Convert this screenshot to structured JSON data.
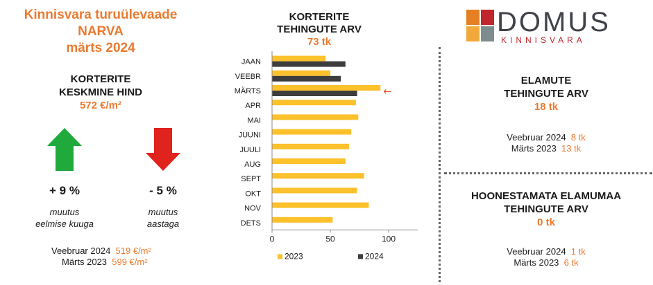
{
  "left": {
    "title_line1": "Kinnisvara turuülevaade",
    "title_line2": "NARVA",
    "title_line3": "märts 2024",
    "subtitle_line1": "KORTERITE",
    "subtitle_line2": "KESKMINE HIND",
    "price": "572 €/m²",
    "change_month": "+ 9 %",
    "change_month_note1": "muutus",
    "change_month_note2": "eelmise kuuga",
    "change_year": "- 5 %",
    "change_year_note1": "muutus",
    "change_year_note2": "aastaga",
    "cmp1_label": "Veebruar 2024",
    "cmp1_value": "519 €/m²",
    "cmp2_label": "Märts 2023",
    "cmp2_value": "599 €/m²",
    "up_color": "#1faa3b",
    "down_color": "#e0231d"
  },
  "chart_title": {
    "line1": "KORTERITE",
    "line2": "TEHINGUTE ARV",
    "value": "73 tk"
  },
  "chart_data": {
    "type": "bar",
    "orientation": "horizontal",
    "categories": [
      "JAAN",
      "VEEBR",
      "MÄRTS",
      "APR",
      "MAI",
      "JUUNI",
      "JUULI",
      "AUG",
      "SEPT",
      "OKT",
      "NOV",
      "DETS"
    ],
    "series": [
      {
        "name": "2023",
        "color": "#fcc12b",
        "values": [
          46,
          50,
          93,
          72,
          74,
          68,
          66,
          63,
          79,
          73,
          83,
          52
        ]
      },
      {
        "name": "2024",
        "color": "#3d3d3d",
        "values": [
          63,
          59,
          73,
          null,
          null,
          null,
          null,
          null,
          null,
          null,
          null,
          null
        ]
      }
    ],
    "xlim": [
      0,
      125
    ],
    "xticks": [
      "0",
      "50",
      "100"
    ],
    "legend_position": "bottom",
    "grid": false,
    "annotation": {
      "symbol": "←",
      "category": "MÄRTS",
      "color": "#e3572e"
    }
  },
  "right": {
    "block1_line1": "ELAMUTE",
    "block1_line2": "TEHINGUTE ARV",
    "block1_value": "18 tk",
    "block1_cmp1_label": "Veebruar 2024",
    "block1_cmp1_value": "8 tk",
    "block1_cmp2_label": "Märts 2023",
    "block1_cmp2_value": "13 tk",
    "block2_line1": "HOONESTAMATA ELAMUMAA",
    "block2_line2": "TEHINGUTE ARV",
    "block2_value": "0 tk",
    "block2_cmp1_label": "Veebruar 2024",
    "block2_cmp1_value": "1 tk",
    "block2_cmp2_label": "Märts 2023",
    "block2_cmp2_value": "6 tk"
  },
  "logo": {
    "word": "DOMUS",
    "subword": "KINNISVARA",
    "colors": [
      "#e67e22",
      "#c0272d",
      "#f2a93b",
      "#7f8c8d"
    ]
  }
}
